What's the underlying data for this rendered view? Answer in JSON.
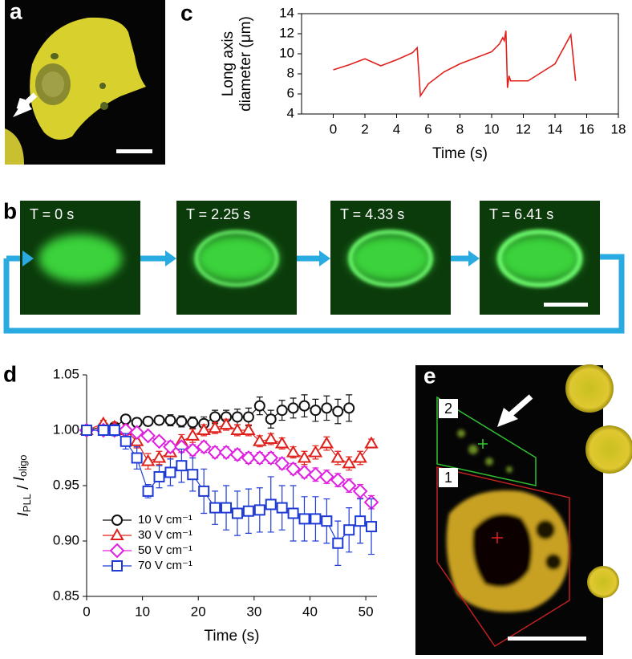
{
  "panel_labels": [
    "a",
    "b",
    "c",
    "d",
    "e"
  ],
  "panel_b": {
    "frames": [
      "T = 0 s",
      "T = 2.25 s",
      "T = 4.33 s",
      "T = 6.41 s"
    ]
  },
  "panel_e": {
    "regions": [
      "2",
      "1"
    ]
  },
  "chart_data": [
    {
      "type": "line",
      "x_label": "Time (s)",
      "y_label": [
        "Long axis",
        "diameter (μm)"
      ],
      "x": [
        0,
        1,
        2,
        3,
        4,
        5,
        5.3,
        5.5,
        6,
        7,
        8,
        9,
        10,
        10.5,
        10.7,
        10.8,
        10.9,
        11,
        11.1,
        11.2,
        12.3,
        13,
        14,
        15,
        15.3
      ],
      "values": [
        8.4,
        8.9,
        9.5,
        8.8,
        9.4,
        10.1,
        10.6,
        5.8,
        7,
        8.2,
        9,
        9.6,
        10.2,
        11,
        11.6,
        11.3,
        12.3,
        6.6,
        7.8,
        7.3,
        7.3,
        8,
        9,
        11.9,
        7.3
      ],
      "color": "#e0201b",
      "frame": true,
      "xlim": [
        -2,
        18
      ],
      "xticks": [
        0,
        2,
        4,
        6,
        8,
        10,
        12,
        14,
        16,
        18
      ],
      "ylim": [
        4,
        14
      ],
      "yticks": [
        4,
        6,
        8,
        10,
        12,
        14
      ]
    },
    {
      "type": "line",
      "x_label": "Time (s)",
      "y_label": [
        "I",
        "PLL",
        " / ",
        "I",
        "oligo"
      ],
      "frame": false,
      "legend": "lower left",
      "x": [
        0,
        3,
        5,
        7,
        9,
        11,
        13,
        15,
        17,
        19,
        21,
        23,
        25,
        27,
        29,
        31,
        33,
        35,
        37,
        39,
        41,
        43,
        45,
        47,
        49,
        51
      ],
      "series": [
        {
          "name": "10 V cm⁻¹",
          "color": "#111111",
          "marker": "circle",
          "values": [
            1.0,
            1.003,
            1.003,
            1.01,
            1.007,
            1.008,
            1.009,
            1.009,
            1.008,
            1.007,
            1.006,
            1.012,
            1.012,
            1.012,
            1.012,
            1.022,
            1.01,
            1.018,
            1.02,
            1.022,
            1.018,
            1.02,
            1.017,
            1.02,
            null,
            null
          ],
          "errors": [
            0.002,
            0.003,
            0.003,
            0.004,
            0.004,
            0.004,
            0.004,
            0.005,
            0.005,
            0.005,
            0.006,
            0.006,
            0.006,
            0.007,
            0.008,
            0.008,
            0.008,
            0.009,
            0.009,
            0.01,
            0.01,
            0.011,
            0.011,
            0.012,
            null,
            null
          ]
        },
        {
          "name": "30 V cm⁻¹",
          "color": "#e0201b",
          "marker": "triangle",
          "values": [
            1.0,
            1.006,
            1.003,
            1.0,
            0.99,
            0.972,
            0.975,
            0.98,
            0.99,
            0.995,
            1.0,
            1.002,
            1.005,
            1.0,
            1.0,
            0.99,
            0.992,
            0.988,
            0.98,
            0.975,
            0.98,
            0.988,
            0.975,
            0.97,
            0.975,
            0.988
          ],
          "errors": [
            0.002,
            0.003,
            0.004,
            0.005,
            0.006,
            0.007,
            0.006,
            0.006,
            0.006,
            0.006,
            0.005,
            0.005,
            0.005,
            0.005,
            0.005,
            0.005,
            0.005,
            0.005,
            0.005,
            0.006,
            0.006,
            0.006,
            0.006,
            0.006,
            0.006,
            0.004
          ]
        },
        {
          "name": "50 V cm⁻¹",
          "color": "#e020e0",
          "marker": "diamond",
          "values": [
            1.0,
            1.0,
            1.0,
            1.0,
            0.998,
            0.995,
            0.99,
            0.985,
            0.985,
            0.982,
            0.985,
            0.98,
            0.98,
            0.978,
            0.975,
            0.975,
            0.975,
            0.97,
            0.965,
            0.962,
            0.96,
            0.958,
            0.955,
            0.95,
            0.945,
            0.935
          ],
          "errors": [
            0.002,
            0.002,
            0.003,
            0.003,
            0.004,
            0.004,
            0.004,
            0.005,
            0.005,
            0.005,
            0.005,
            0.005,
            0.005,
            0.005,
            0.005,
            0.005,
            0.005,
            0.005,
            0.005,
            0.005,
            0.006,
            0.006,
            0.006,
            0.006,
            0.006,
            0.006
          ]
        },
        {
          "name": "70 V cm⁻¹",
          "color": "#1f3bd6",
          "marker": "square",
          "values": [
            1.0,
            1.0,
            1.0,
            0.99,
            0.975,
            0.945,
            0.958,
            0.962,
            0.968,
            0.96,
            0.945,
            0.93,
            0.93,
            0.925,
            0.927,
            0.928,
            0.933,
            0.93,
            0.925,
            0.92,
            0.92,
            0.918,
            0.898,
            0.91,
            0.918,
            0.913
          ],
          "errors": [
            0.002,
            0.003,
            0.005,
            0.007,
            0.01,
            0.006,
            0.01,
            0.012,
            0.015,
            0.015,
            0.02,
            0.015,
            0.02,
            0.02,
            0.02,
            0.02,
            0.025,
            0.02,
            0.025,
            0.02,
            0.02,
            0.02,
            0.02,
            0.02,
            0.02,
            0.025
          ]
        }
      ],
      "xlim": [
        0,
        52
      ],
      "xticks": [
        0,
        10,
        20,
        30,
        40,
        50
      ],
      "ylim": [
        0.85,
        1.05
      ],
      "yticks": [
        {
          "value": 0.85,
          "label": "0.85"
        },
        {
          "value": 0.9,
          "label": "0.90"
        },
        {
          "value": 0.95,
          "label": "0.95"
        },
        {
          "value": 1.0,
          "label": "1.00"
        },
        {
          "value": 1.05,
          "label": "1.05"
        }
      ]
    }
  ]
}
